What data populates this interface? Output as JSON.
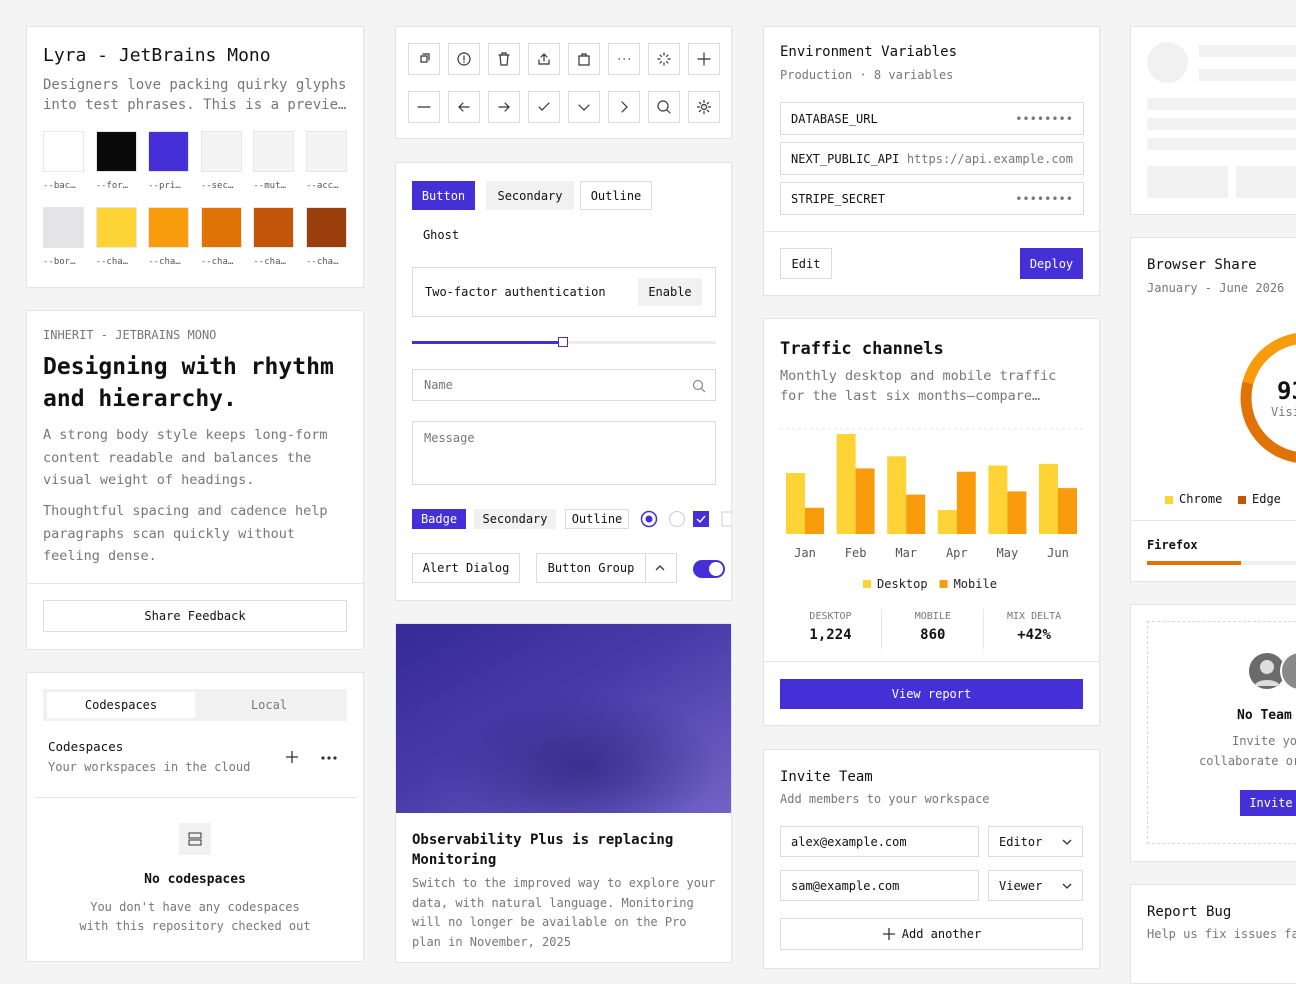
{
  "palette_card": {
    "title": "Lyra - JetBrains Mono",
    "description": "Designers love packing quirky glyphs into test phrases. This is a previe…",
    "swatches": [
      {
        "label": "--bac…",
        "color": "#ffffff"
      },
      {
        "label": "--for…",
        "color": "#0a0a0a"
      },
      {
        "label": "--pri…",
        "color": "#4430d6"
      },
      {
        "label": "--sec…",
        "color": "#f4f4f4"
      },
      {
        "label": "--mut…",
        "color": "#f4f4f4"
      },
      {
        "label": "--acc…",
        "color": "#f4f4f4"
      },
      {
        "label": "--bor…",
        "color": "#e4e4e7"
      },
      {
        "label": "--cha…",
        "color": "#fdd335"
      },
      {
        "label": "--cha…",
        "color": "#f99c0b"
      },
      {
        "label": "--cha…",
        "color": "#e07306"
      },
      {
        "label": "--cha…",
        "color": "#c2550a"
      },
      {
        "label": "--cha…",
        "color": "#9a3f0c"
      }
    ]
  },
  "typography_card": {
    "eyebrow": "INHERIT - JETBRAINS MONO",
    "heading": "Designing with rhythm and hierarchy.",
    "paragraphs": [
      "A strong body style keeps long-form content readable and balances the visual weight of headings.",
      "Thoughtful spacing and cadence help paragraphs scan quickly without feeling dense."
    ],
    "button": "Share Feedback"
  },
  "codespaces_card": {
    "tabs": [
      "Codespaces",
      "Local"
    ],
    "title": "Codespaces",
    "subtitle": "Your workspaces in the cloud",
    "empty_title": "No codespaces",
    "empty_text": "You don't have any codespaces with this repository checked out"
  },
  "controls_card": {
    "buttons": [
      "Button",
      "Secondary",
      "Outline",
      "Ghost"
    ],
    "two_factor": {
      "label": "Two-factor authentication",
      "button": "Enable"
    },
    "name_placeholder": "Name",
    "message_placeholder": "Message",
    "badges": [
      "Badge",
      "Secondary",
      "Outline"
    ],
    "alert_dialog": "Alert Dialog",
    "button_group": "Button Group"
  },
  "article_card": {
    "title": "Observability Plus is replacing Monitoring",
    "body": "Switch to the improved way to explore your data, with natural language. Monitoring will no longer be available on the Pro plan in November, 2025"
  },
  "env_card": {
    "title": "Environment Variables",
    "subtitle": "Production · 8 variables",
    "rows": [
      {
        "key": "DATABASE_URL",
        "value": "••••••••"
      },
      {
        "key": "NEXT_PUBLIC_API",
        "value": "https://api.example.com"
      },
      {
        "key": "STRIPE_SECRET",
        "value": "••••••••"
      }
    ],
    "edit": "Edit",
    "deploy": "Deploy"
  },
  "traffic_card": {
    "title": "Traffic channels",
    "description": "Monthly desktop and mobile traffic for the last six months—compare…",
    "chart": {
      "type": "bar",
      "categories": [
        "Jan",
        "Feb",
        "Mar",
        "Apr",
        "May",
        "Jun"
      ],
      "series": [
        {
          "name": "Desktop",
          "color": "#fdd335",
          "values": [
            186,
            305,
            237,
            73,
            209,
            214
          ]
        },
        {
          "name": "Mobile",
          "color": "#f99c0b",
          "values": [
            80,
            200,
            120,
            190,
            130,
            140
          ]
        }
      ]
    },
    "stats": [
      {
        "label": "DESKTOP",
        "value": "1,224"
      },
      {
        "label": "MOBILE",
        "value": "860"
      },
      {
        "label": "MIX DELTA",
        "value": "+42%"
      }
    ],
    "button": "View report"
  },
  "invite_card": {
    "title": "Invite Team",
    "subtitle": "Add members to your workspace",
    "rows": [
      {
        "email": "alex@example.com",
        "role": "Editor"
      },
      {
        "email": "sam@example.com",
        "role": "Viewer"
      }
    ],
    "add": "Add another"
  },
  "browser_card": {
    "title": "Browser Share",
    "subtitle": "January - June 2026",
    "center_value": "93",
    "center_label": "Visi",
    "legend": [
      "Chrome",
      "Edge"
    ],
    "tab": "Firefox"
  },
  "team_card": {
    "title": "No Team",
    "text": [
      "Invite yo",
      "collaborate or"
    ],
    "button": "Invite"
  },
  "bug_card": {
    "title": "Report Bug",
    "subtitle": "Help us fix issues fa"
  }
}
